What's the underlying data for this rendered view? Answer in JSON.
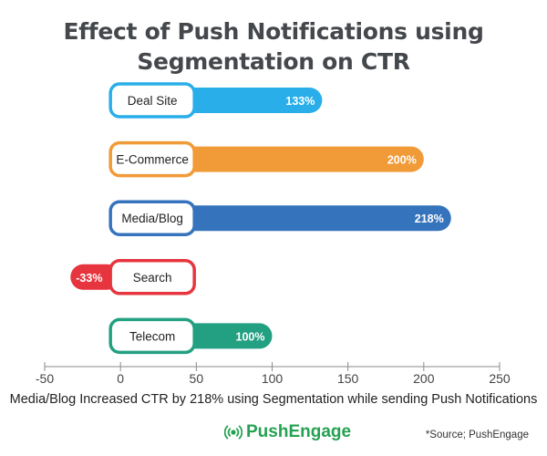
{
  "chart_data": {
    "type": "bar",
    "orientation": "horizontal",
    "title": "Effect of Push Notifications using Segmentation on CTR",
    "title_lines": [
      "Effect of Push Notifications using",
      "Segmentation on CTR"
    ],
    "categories": [
      "Deal Site",
      "E-Commerce",
      "Media/Blog",
      "Search",
      "Telecom"
    ],
    "values": [
      133,
      200,
      218,
      -33,
      100
    ],
    "data_labels": [
      "133%",
      "200%",
      "218%",
      "-33%",
      "100%"
    ],
    "colors": [
      "#29aee9",
      "#f19a38",
      "#3574bc",
      "#e7353f",
      "#22a081"
    ],
    "xlim": [
      -50,
      250
    ],
    "xticks": [
      -50,
      0,
      50,
      100,
      150,
      200,
      250
    ],
    "grid": false,
    "legend": "none"
  },
  "caption": "Media/Blog Increased CTR by 218% using Segmentation while sending Push Notifications",
  "brand": {
    "name": "PushEngage",
    "icon": "broadcast-icon",
    "color": "#24a152"
  },
  "source": "*Source; PushEngage"
}
